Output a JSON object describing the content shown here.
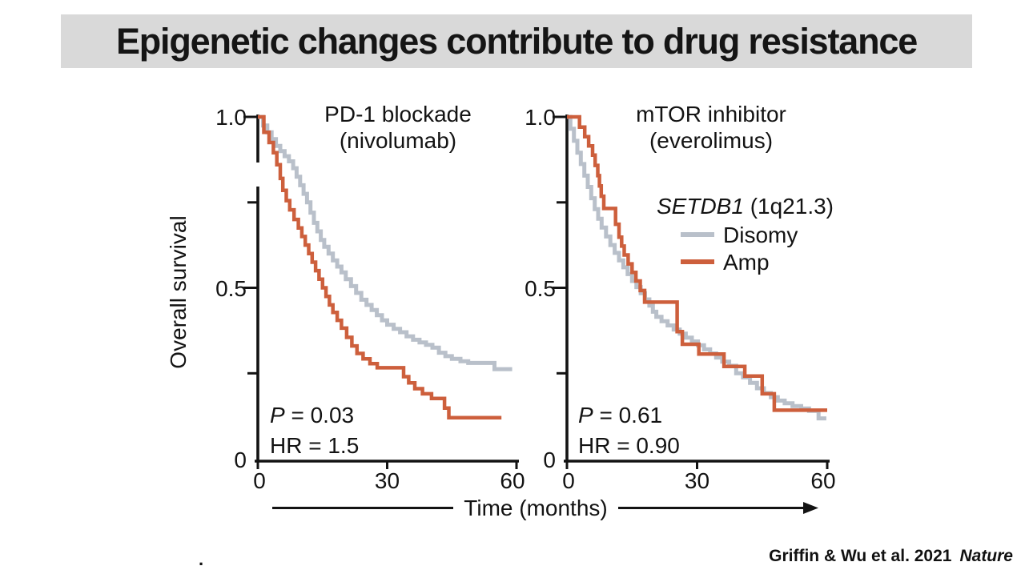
{
  "colors": {
    "ink": "#131313",
    "banner_bg": "#d9d9d9",
    "disomy": "#b9c0ca",
    "amp": "#cd5f3c"
  },
  "slide": {
    "title": "Epigenetic changes contribute to drug resistance",
    "citation_authors": "Griffin & Wu et al. 2021",
    "citation_journal": "Nature",
    "stray_mark": "."
  },
  "axes": {
    "y_label": "Overall survival",
    "x_label": "Time (months)",
    "y_tick_labels": [
      "1.0",
      "0.5",
      "0"
    ],
    "x_tick_labels": [
      "0",
      "30",
      "60"
    ]
  },
  "legend": {
    "gene": "SETDB1",
    "locus": " (1q21.3)",
    "items": [
      {
        "label": "Disomy",
        "color": "#b9c0ca"
      },
      {
        "label": "Amp",
        "color": "#cd5f3c"
      }
    ]
  },
  "charts": [
    {
      "title_line1": "PD-1 blockade",
      "title_line2": "(nivolumab)",
      "p_italic": "P",
      "p_rest": " = 0.03",
      "hr": "HR = 1.5"
    },
    {
      "title_line1": "mTOR inhibitor",
      "title_line2": "(everolimus)",
      "p_italic": "P",
      "p_rest": " = 0.61",
      "hr": "HR = 0.90"
    }
  ],
  "chart_data": [
    {
      "type": "line",
      "subtype": "kaplan-meier-step",
      "title": "PD-1 blockade (nivolumab)",
      "xlabel": "Time (months)",
      "ylabel": "Overall survival",
      "xlim": [
        0,
        60
      ],
      "ylim": [
        0,
        1
      ],
      "x_ticks": [
        0,
        30,
        60
      ],
      "y_ticks": [
        0,
        0.25,
        0.5,
        0.75,
        1.0
      ],
      "grid": false,
      "annotations": {
        "p_value": "P = 0.03",
        "hazard_ratio": "HR = 1.5"
      },
      "series": [
        {
          "name": "Disomy",
          "color": "#b9c0ca",
          "points": [
            [
              0,
              1.0
            ],
            [
              1.2,
              0.975
            ],
            [
              2.2,
              0.955
            ],
            [
              3.2,
              0.935
            ],
            [
              4.2,
              0.915
            ],
            [
              5.2,
              0.9
            ],
            [
              6.2,
              0.885
            ],
            [
              7.2,
              0.87
            ],
            [
              8.2,
              0.85
            ],
            [
              9,
              0.825
            ],
            [
              9.8,
              0.8
            ],
            [
              10.6,
              0.775
            ],
            [
              11.4,
              0.75
            ],
            [
              12.2,
              0.72
            ],
            [
              13,
              0.69
            ],
            [
              13.8,
              0.665
            ],
            [
              14.6,
              0.64
            ],
            [
              15.4,
              0.62
            ],
            [
              16.4,
              0.6
            ],
            [
              17.4,
              0.58
            ],
            [
              18.4,
              0.562
            ],
            [
              19.4,
              0.545
            ],
            [
              20.4,
              0.525
            ],
            [
              21.6,
              0.505
            ],
            [
              22.8,
              0.485
            ],
            [
              24,
              0.465
            ],
            [
              25.2,
              0.45
            ],
            [
              26.4,
              0.435
            ],
            [
              27.6,
              0.42
            ],
            [
              28.8,
              0.405
            ],
            [
              30,
              0.392
            ],
            [
              31.5,
              0.38
            ],
            [
              33,
              0.37
            ],
            [
              34.5,
              0.358
            ],
            [
              36,
              0.348
            ],
            [
              37.5,
              0.34
            ],
            [
              39,
              0.333
            ],
            [
              40.5,
              0.325
            ],
            [
              42,
              0.31
            ],
            [
              43.5,
              0.3
            ],
            [
              45,
              0.292
            ],
            [
              47,
              0.285
            ],
            [
              48.8,
              0.28
            ],
            [
              54.9,
              0.262
            ],
            [
              59,
              0.262
            ]
          ]
        },
        {
          "name": "Amp",
          "color": "#cd5f3c",
          "points": [
            [
              0,
              1.0
            ],
            [
              1.4,
              0.955
            ],
            [
              2.6,
              0.925
            ],
            [
              3.6,
              0.895
            ],
            [
              4.4,
              0.86
            ],
            [
              5.2,
              0.82
            ],
            [
              5.8,
              0.785
            ],
            [
              6.6,
              0.755
            ],
            [
              7.4,
              0.728
            ],
            [
              8.4,
              0.7
            ],
            [
              9.4,
              0.675
            ],
            [
              10.2,
              0.65
            ],
            [
              11,
              0.625
            ],
            [
              11.8,
              0.6
            ],
            [
              12.6,
              0.575
            ],
            [
              13.4,
              0.55
            ],
            [
              14.2,
              0.525
            ],
            [
              15,
              0.5
            ],
            [
              15.8,
              0.475
            ],
            [
              16.6,
              0.45
            ],
            [
              17.4,
              0.428
            ],
            [
              18.4,
              0.405
            ],
            [
              19.4,
              0.382
            ],
            [
              20.6,
              0.355
            ],
            [
              21.8,
              0.33
            ],
            [
              23,
              0.308
            ],
            [
              24.4,
              0.292
            ],
            [
              26,
              0.278
            ],
            [
              27.7,
              0.266
            ],
            [
              33.8,
              0.24
            ],
            [
              35,
              0.222
            ],
            [
              36.4,
              0.205
            ],
            [
              38.2,
              0.19
            ],
            [
              40.3,
              0.176
            ],
            [
              43.3,
              0.148
            ],
            [
              44.3,
              0.12
            ],
            [
              56.5,
              0.12
            ]
          ]
        }
      ]
    },
    {
      "type": "line",
      "subtype": "kaplan-meier-step",
      "title": "mTOR inhibitor (everolimus)",
      "xlabel": "Time (months)",
      "ylabel": "Overall survival",
      "xlim": [
        0,
        60
      ],
      "ylim": [
        0,
        1
      ],
      "x_ticks": [
        0,
        30,
        60
      ],
      "y_ticks": [
        0,
        0.25,
        0.5,
        0.75,
        1.0
      ],
      "grid": false,
      "legend_title": "SETDB1 (1q21.3)",
      "annotations": {
        "p_value": "P = 0.61",
        "hazard_ratio": "HR = 0.90"
      },
      "series": [
        {
          "name": "Disomy",
          "color": "#b9c0ca",
          "points": [
            [
              0,
              1.0
            ],
            [
              0.8,
              0.965
            ],
            [
              1.6,
              0.93
            ],
            [
              2.4,
              0.895
            ],
            [
              3.2,
              0.862
            ],
            [
              4,
              0.828
            ],
            [
              4.8,
              0.795
            ],
            [
              5.6,
              0.762
            ],
            [
              6.4,
              0.73
            ],
            [
              7.2,
              0.702
            ],
            [
              8,
              0.676
            ],
            [
              9,
              0.65
            ],
            [
              10,
              0.625
            ],
            [
              11,
              0.602
            ],
            [
              12,
              0.58
            ],
            [
              13,
              0.56
            ],
            [
              14,
              0.54
            ],
            [
              15,
              0.52
            ],
            [
              16,
              0.502
            ],
            [
              17,
              0.484
            ],
            [
              18,
              0.466
            ],
            [
              19,
              0.448
            ],
            [
              19.8,
              0.43
            ],
            [
              20.6,
              0.415
            ],
            [
              21.8,
              0.402
            ],
            [
              23.2,
              0.39
            ],
            [
              24.6,
              0.378
            ],
            [
              26,
              0.366
            ],
            [
              27.4,
              0.354
            ],
            [
              28.8,
              0.343
            ],
            [
              30.2,
              0.332
            ],
            [
              31.6,
              0.32
            ],
            [
              33,
              0.308
            ],
            [
              34.4,
              0.296
            ],
            [
              35.8,
              0.284
            ],
            [
              37.4,
              0.272
            ],
            [
              39,
              0.25
            ],
            [
              40.6,
              0.238
            ],
            [
              42.2,
              0.222
            ],
            [
              43.8,
              0.206
            ],
            [
              45.4,
              0.192
            ],
            [
              47,
              0.18
            ],
            [
              48.6,
              0.17
            ],
            [
              50.2,
              0.162
            ],
            [
              52,
              0.154
            ],
            [
              54,
              0.147
            ],
            [
              55.8,
              0.14
            ],
            [
              58,
              0.118
            ],
            [
              59.8,
              0.118
            ]
          ]
        },
        {
          "name": "Amp",
          "color": "#cd5f3c",
          "points": [
            [
              0,
              1.0
            ],
            [
              2.9,
              0.97
            ],
            [
              4.1,
              0.942
            ],
            [
              5,
              0.915
            ],
            [
              5.9,
              0.888
            ],
            [
              6.5,
              0.858
            ],
            [
              7.1,
              0.828
            ],
            [
              7.5,
              0.798
            ],
            [
              7.9,
              0.768
            ],
            [
              8.5,
              0.732
            ],
            [
              11.2,
              0.686
            ],
            [
              12,
              0.648
            ],
            [
              12.6,
              0.622
            ],
            [
              13.2,
              0.596
            ],
            [
              14.1,
              0.57
            ],
            [
              15,
              0.545
            ],
            [
              15.9,
              0.52
            ],
            [
              16.9,
              0.492
            ],
            [
              17.9,
              0.458
            ],
            [
              25.4,
              0.372
            ],
            [
              26.6,
              0.335
            ],
            [
              30.4,
              0.306
            ],
            [
              36.2,
              0.27
            ],
            [
              41,
              0.242
            ],
            [
              45,
              0.19
            ],
            [
              47.8,
              0.142
            ],
            [
              60,
              0.142
            ]
          ]
        }
      ]
    }
  ]
}
